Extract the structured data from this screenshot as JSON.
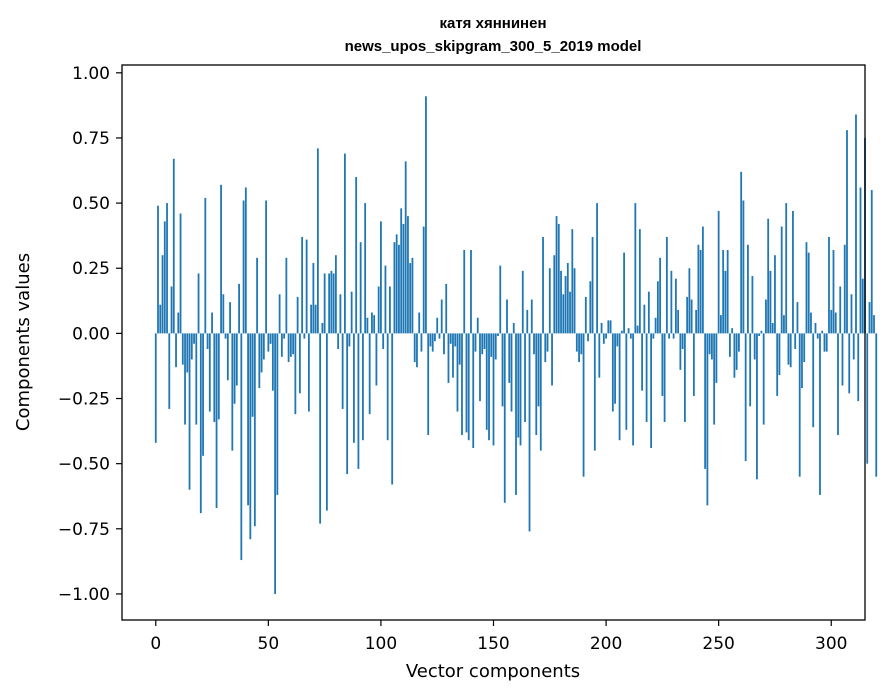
{
  "chart_data": {
    "type": "bar",
    "title": "катя хяннинен",
    "subtitle": "news_upos_skipgram_300_5_2019 model",
    "xlabel": "Vector components",
    "ylabel": "Components values",
    "xlim": [
      -15,
      315
    ],
    "ylim": [
      -1.1,
      1.03
    ],
    "xticks": [
      0,
      50,
      100,
      150,
      200,
      250,
      300
    ],
    "xtick_labels": [
      "0",
      "50",
      "100",
      "150",
      "200",
      "250",
      "300"
    ],
    "yticks": [
      -1.0,
      -0.75,
      -0.5,
      -0.25,
      0.0,
      0.25,
      0.5,
      0.75,
      1.0
    ],
    "ytick_labels": [
      "−1.00",
      "−0.75",
      "−0.50",
      "−0.25",
      "0.00",
      "0.25",
      "0.50",
      "0.75",
      "1.00"
    ],
    "bar_color": "#1f77b4",
    "values": [
      -0.42,
      0.49,
      0.11,
      0.3,
      0.43,
      0.5,
      -0.29,
      0.18,
      0.67,
      -0.13,
      0.08,
      0.46,
      -0.12,
      -0.35,
      -0.15,
      -0.6,
      -0.1,
      -0.04,
      -0.35,
      0.23,
      -0.69,
      -0.47,
      0.52,
      -0.06,
      -0.3,
      0.08,
      -0.34,
      -0.67,
      -0.33,
      0.57,
      0.15,
      -0.02,
      -0.18,
      0.12,
      -0.45,
      -0.27,
      -0.2,
      0.19,
      -0.87,
      0.51,
      0.56,
      -0.66,
      -0.79,
      -0.32,
      -0.74,
      0.29,
      -0.21,
      -0.15,
      -0.1,
      0.51,
      -0.07,
      -0.04,
      -0.22,
      -1.0,
      -0.62,
      0.15,
      -0.09,
      -0.02,
      0.29,
      -0.11,
      -0.09,
      -0.08,
      -0.31,
      0.14,
      -0.23,
      0.37,
      -0.02,
      0.36,
      -0.3,
      0.11,
      0.27,
      0.11,
      0.71,
      -0.73,
      0.04,
      0.23,
      -0.68,
      0.23,
      0.24,
      0.23,
      0.3,
      -0.06,
      0.15,
      -0.29,
      0.69,
      -0.54,
      -0.05,
      0.16,
      -0.42,
      0.6,
      -0.52,
      0.35,
      -0.41,
      0.5,
      0.06,
      -0.31,
      0.08,
      0.07,
      -0.2,
      0.18,
      0.43,
      -0.06,
      0.26,
      -0.41,
      0.18,
      -0.58,
      0.35,
      0.38,
      0.34,
      0.48,
      0.42,
      0.66,
      0.45,
      0.27,
      0.29,
      -0.11,
      -0.13,
      0.08,
      -0.07,
      0.41,
      0.91,
      -0.39,
      -0.05,
      -0.07,
      -0.03,
      0.06,
      -0.02,
      0.13,
      -0.08,
      0.19,
      -0.19,
      -0.04,
      -0.17,
      -0.05,
      -0.3,
      -0.12,
      -0.39,
      0.32,
      -0.38,
      -0.41,
      0.32,
      -0.44,
      -0.07,
      0.06,
      -0.26,
      -0.08,
      -0.06,
      -0.37,
      -0.41,
      -0.09,
      -0.43,
      -0.1,
      -0.01,
      0.26,
      -0.28,
      -0.65,
      0.13,
      -0.19,
      -0.3,
      0.04,
      -0.62,
      -0.4,
      -0.43,
      0.24,
      -0.34,
      0.09,
      -0.76,
      0.13,
      -0.08,
      -0.39,
      -0.28,
      -0.45,
      0.37,
      -0.11,
      -0.07,
      0.25,
      -0.2,
      0.3,
      0.45,
      0.42,
      0.24,
      0.15,
      0.22,
      0.27,
      0.16,
      0.4,
      0.25,
      -0.07,
      -0.11,
      -0.08,
      -0.55,
      0.14,
      -0.03,
      0.2,
      0.37,
      -0.45,
      0.5,
      -0.17,
      0.04,
      -0.04,
      -0.02,
      0.05,
      0.05,
      -0.3,
      -0.27,
      -0.05,
      -0.41,
      0.01,
      0.31,
      -0.37,
      0.02,
      -0.02,
      -0.43,
      0.5,
      0.03,
      0.4,
      -0.22,
      0.11,
      -0.34,
      0.16,
      -0.44,
      -0.02,
      0.06,
      0.2,
      0.29,
      -0.24,
      -0.34,
      0.37,
      -0.02,
      0.24,
      -0.02,
      0.21,
      0.09,
      -0.14,
      -0.06,
      -0.34,
      0.14,
      0.25,
      0.13,
      -0.24,
      0.09,
      0.34,
      0.32,
      0.41,
      -0.52,
      -0.66,
      -0.08,
      -0.1,
      -0.35,
      -0.19,
      0.47,
      0.07,
      0.32,
      0.24,
      0.32,
      -0.09,
      0.02,
      -0.17,
      -0.14,
      -0.07,
      0.62,
      0.51,
      -0.49,
      0.34,
      -0.28,
      0.22,
      -0.1,
      -0.56,
      -0.01,
      0.01,
      -0.35,
      0.13,
      0.44,
      0.24,
      0.04,
      0.3,
      -0.24,
      -0.16,
      0.41,
      0.07,
      0.5,
      -0.12,
      -0.13,
      0.47,
      -0.06,
      0.12,
      -0.55,
      -0.21,
      -0.11,
      0.35,
      0.31,
      0.08,
      -0.36,
      0.04,
      -0.02,
      -0.62,
      0.01,
      -0.07,
      -0.07,
      0.37,
      0.09,
      0.32,
      0.08,
      -0.39,
      0.18,
      -0.2,
      0.34,
      0.78,
      -0.23,
      0.15,
      -0.1,
      0.84,
      -0.26,
      0.56,
      0.21,
      0.75,
      -0.5,
      0.12,
      0.55,
      0.07,
      -0.55
    ]
  }
}
